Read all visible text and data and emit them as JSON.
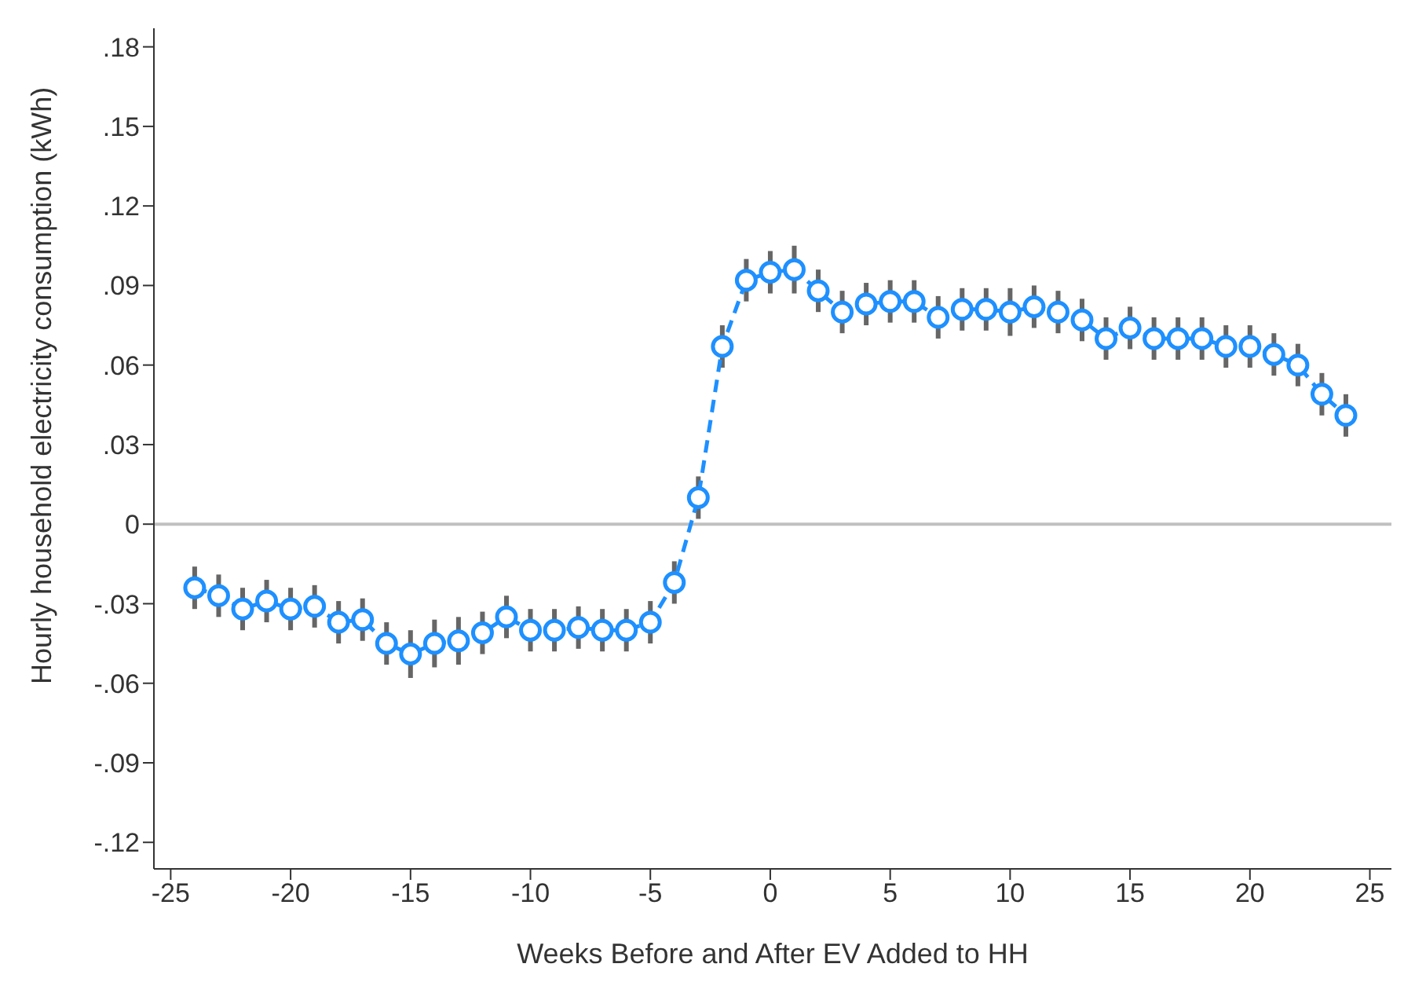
{
  "chart_data": {
    "type": "line",
    "xlabel": "Weeks Before and After EV Added to HH",
    "ylabel": "Hourly household electricity consumption (kWh)",
    "x": [
      -24,
      -23,
      -22,
      -21,
      -20,
      -19,
      -18,
      -17,
      -16,
      -15,
      -14,
      -13,
      -12,
      -11,
      -10,
      -9,
      -8,
      -7,
      -6,
      -5,
      -4,
      -3,
      -2,
      -1,
      0,
      1,
      2,
      3,
      4,
      5,
      6,
      7,
      8,
      9,
      10,
      11,
      12,
      13,
      14,
      15,
      16,
      17,
      18,
      19,
      20,
      21,
      22,
      23,
      24
    ],
    "series": [
      {
        "color": "#1e90ff",
        "values": [
          -0.024,
          -0.027,
          -0.032,
          -0.029,
          -0.032,
          -0.031,
          -0.037,
          -0.036,
          -0.045,
          -0.049,
          -0.045,
          -0.044,
          -0.041,
          -0.035,
          -0.04,
          -0.04,
          -0.039,
          -0.04,
          -0.04,
          -0.037,
          -0.022,
          0.01,
          0.067,
          0.092,
          0.095,
          0.096,
          0.088,
          0.08,
          0.083,
          0.084,
          0.084,
          0.078,
          0.081,
          0.081,
          0.08,
          0.082,
          0.08,
          0.077,
          0.07,
          0.074,
          0.07,
          0.07,
          0.07,
          0.067,
          0.067,
          0.064,
          0.06,
          0.049,
          0.041
        ],
        "errors": [
          0.008,
          0.008,
          0.008,
          0.008,
          0.008,
          0.008,
          0.008,
          0.008,
          0.008,
          0.009,
          0.009,
          0.009,
          0.008,
          0.008,
          0.008,
          0.008,
          0.008,
          0.008,
          0.008,
          0.008,
          0.008,
          0.008,
          0.008,
          0.008,
          0.008,
          0.009,
          0.008,
          0.008,
          0.008,
          0.008,
          0.008,
          0.008,
          0.008,
          0.008,
          0.009,
          0.008,
          0.008,
          0.008,
          0.008,
          0.008,
          0.008,
          0.008,
          0.008,
          0.008,
          0.008,
          0.008,
          0.008,
          0.008,
          0.008
        ]
      }
    ],
    "xlim": [
      -25.7,
      25.9
    ],
    "xticks": [
      -25,
      -20,
      -15,
      -10,
      -5,
      0,
      5,
      10,
      15,
      20,
      25
    ],
    "ylim": [
      -0.13,
      0.187
    ],
    "yticks": [
      {
        "value": -0.12,
        "label": "-.12"
      },
      {
        "value": -0.09,
        "label": "-.09"
      },
      {
        "value": -0.06,
        "label": "-.06"
      },
      {
        "value": -0.03,
        "label": "-.03"
      },
      0,
      {
        "value": 0.03,
        "label": ".03"
      },
      {
        "value": 0.06,
        "label": ".06"
      },
      {
        "value": 0.09,
        "label": ".09"
      },
      {
        "value": 0.12,
        "label": ".12"
      },
      {
        "value": 0.15,
        "label": ".15"
      },
      {
        "value": 0.18,
        "label": ".18"
      }
    ],
    "ref_lines": [
      {
        "axis": "y",
        "value": 0,
        "color": "#c0c0c0"
      }
    ],
    "marker": "circle",
    "line_style": "dashed",
    "grid": false,
    "legend": false
  }
}
